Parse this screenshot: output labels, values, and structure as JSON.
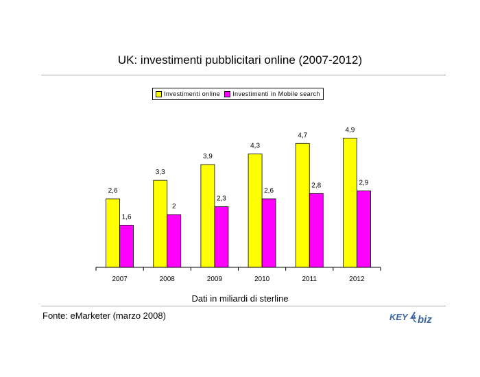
{
  "slide": {
    "title": "UK: investimenti pubblicitari online (2007-2012)",
    "x_axis_title": "Dati in miliardi di sterline",
    "source": "Fonte: eMarketer (marzo 2008)",
    "logo_text": "KEY4biz"
  },
  "legend": [
    "Investimenti online",
    "Investimenti in Mobile search"
  ],
  "colors": {
    "online": "#ffff00",
    "mobile": "#ff00ff",
    "rule": "#a6a6a6",
    "logo": "#3a66a8"
  },
  "chart_data": {
    "type": "bar",
    "title": "",
    "xlabel": "Dati in miliardi di sterline",
    "ylabel": "",
    "categories": [
      "2007",
      "2008",
      "2009",
      "2010",
      "2011",
      "2012"
    ],
    "series": [
      {
        "name": "Investimenti online",
        "values": [
          2.6,
          3.3,
          3.9,
          4.3,
          4.7,
          4.9
        ],
        "labels": [
          "2,6",
          "3,3",
          "3,9",
          "4,3",
          "4,7",
          "4,9"
        ]
      },
      {
        "name": "Investimenti in Mobile search",
        "values": [
          1.6,
          2,
          2.3,
          2.6,
          2.8,
          2.9
        ],
        "labels": [
          "1,6",
          "2",
          "2,3",
          "2,6",
          "2,8",
          "2,9"
        ]
      }
    ],
    "ylim": [
      0,
      5.8
    ],
    "grid": false,
    "legend_position": "top"
  }
}
